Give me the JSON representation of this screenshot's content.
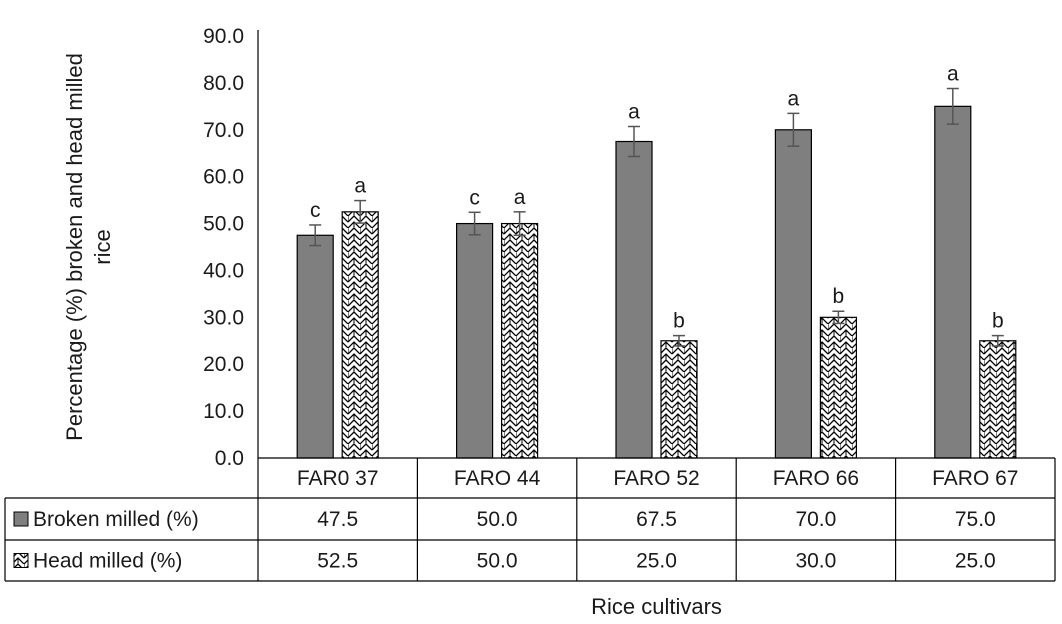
{
  "chart_data": {
    "type": "bar",
    "title": "",
    "xlabel": "Rice cultivars",
    "ylabel_lines": [
      "Percentage (%) broken and head milled",
      "rice"
    ],
    "ylim": [
      0,
      90
    ],
    "yticks": [
      "0.0",
      "10.0",
      "20.0",
      "30.0",
      "40.0",
      "50.0",
      "60.0",
      "70.0",
      "80.0",
      "90.0"
    ],
    "categories": [
      "FAR0 37",
      "FARO 44",
      "FARO 52",
      "FARO 66",
      "FARO 67"
    ],
    "series": [
      {
        "name": "Broken milled (%)",
        "values": [
          47.5,
          50.0,
          67.5,
          70.0,
          75.0
        ],
        "display_values": [
          "47.5",
          "50.0",
          "67.5",
          "70.0",
          "75.0"
        ],
        "errors": [
          2.2,
          2.4,
          3.2,
          3.5,
          3.8
        ],
        "letters": [
          "c",
          "c",
          "a",
          "a",
          "a"
        ],
        "color": "#7f7f7f",
        "pattern": "solid"
      },
      {
        "name": "Head milled (%)",
        "values": [
          52.5,
          50.0,
          25.0,
          30.0,
          25.0
        ],
        "display_values": [
          "52.5",
          "50.0",
          "25.0",
          "30.0",
          "25.0"
        ],
        "errors": [
          2.4,
          2.5,
          1.1,
          1.3,
          1.1
        ],
        "letters": [
          "a",
          "a",
          "b",
          "b",
          "b"
        ],
        "color": "#ffffff",
        "pattern": "zigzag"
      }
    ],
    "data_table": true,
    "grid": false,
    "legend": "data-table"
  }
}
